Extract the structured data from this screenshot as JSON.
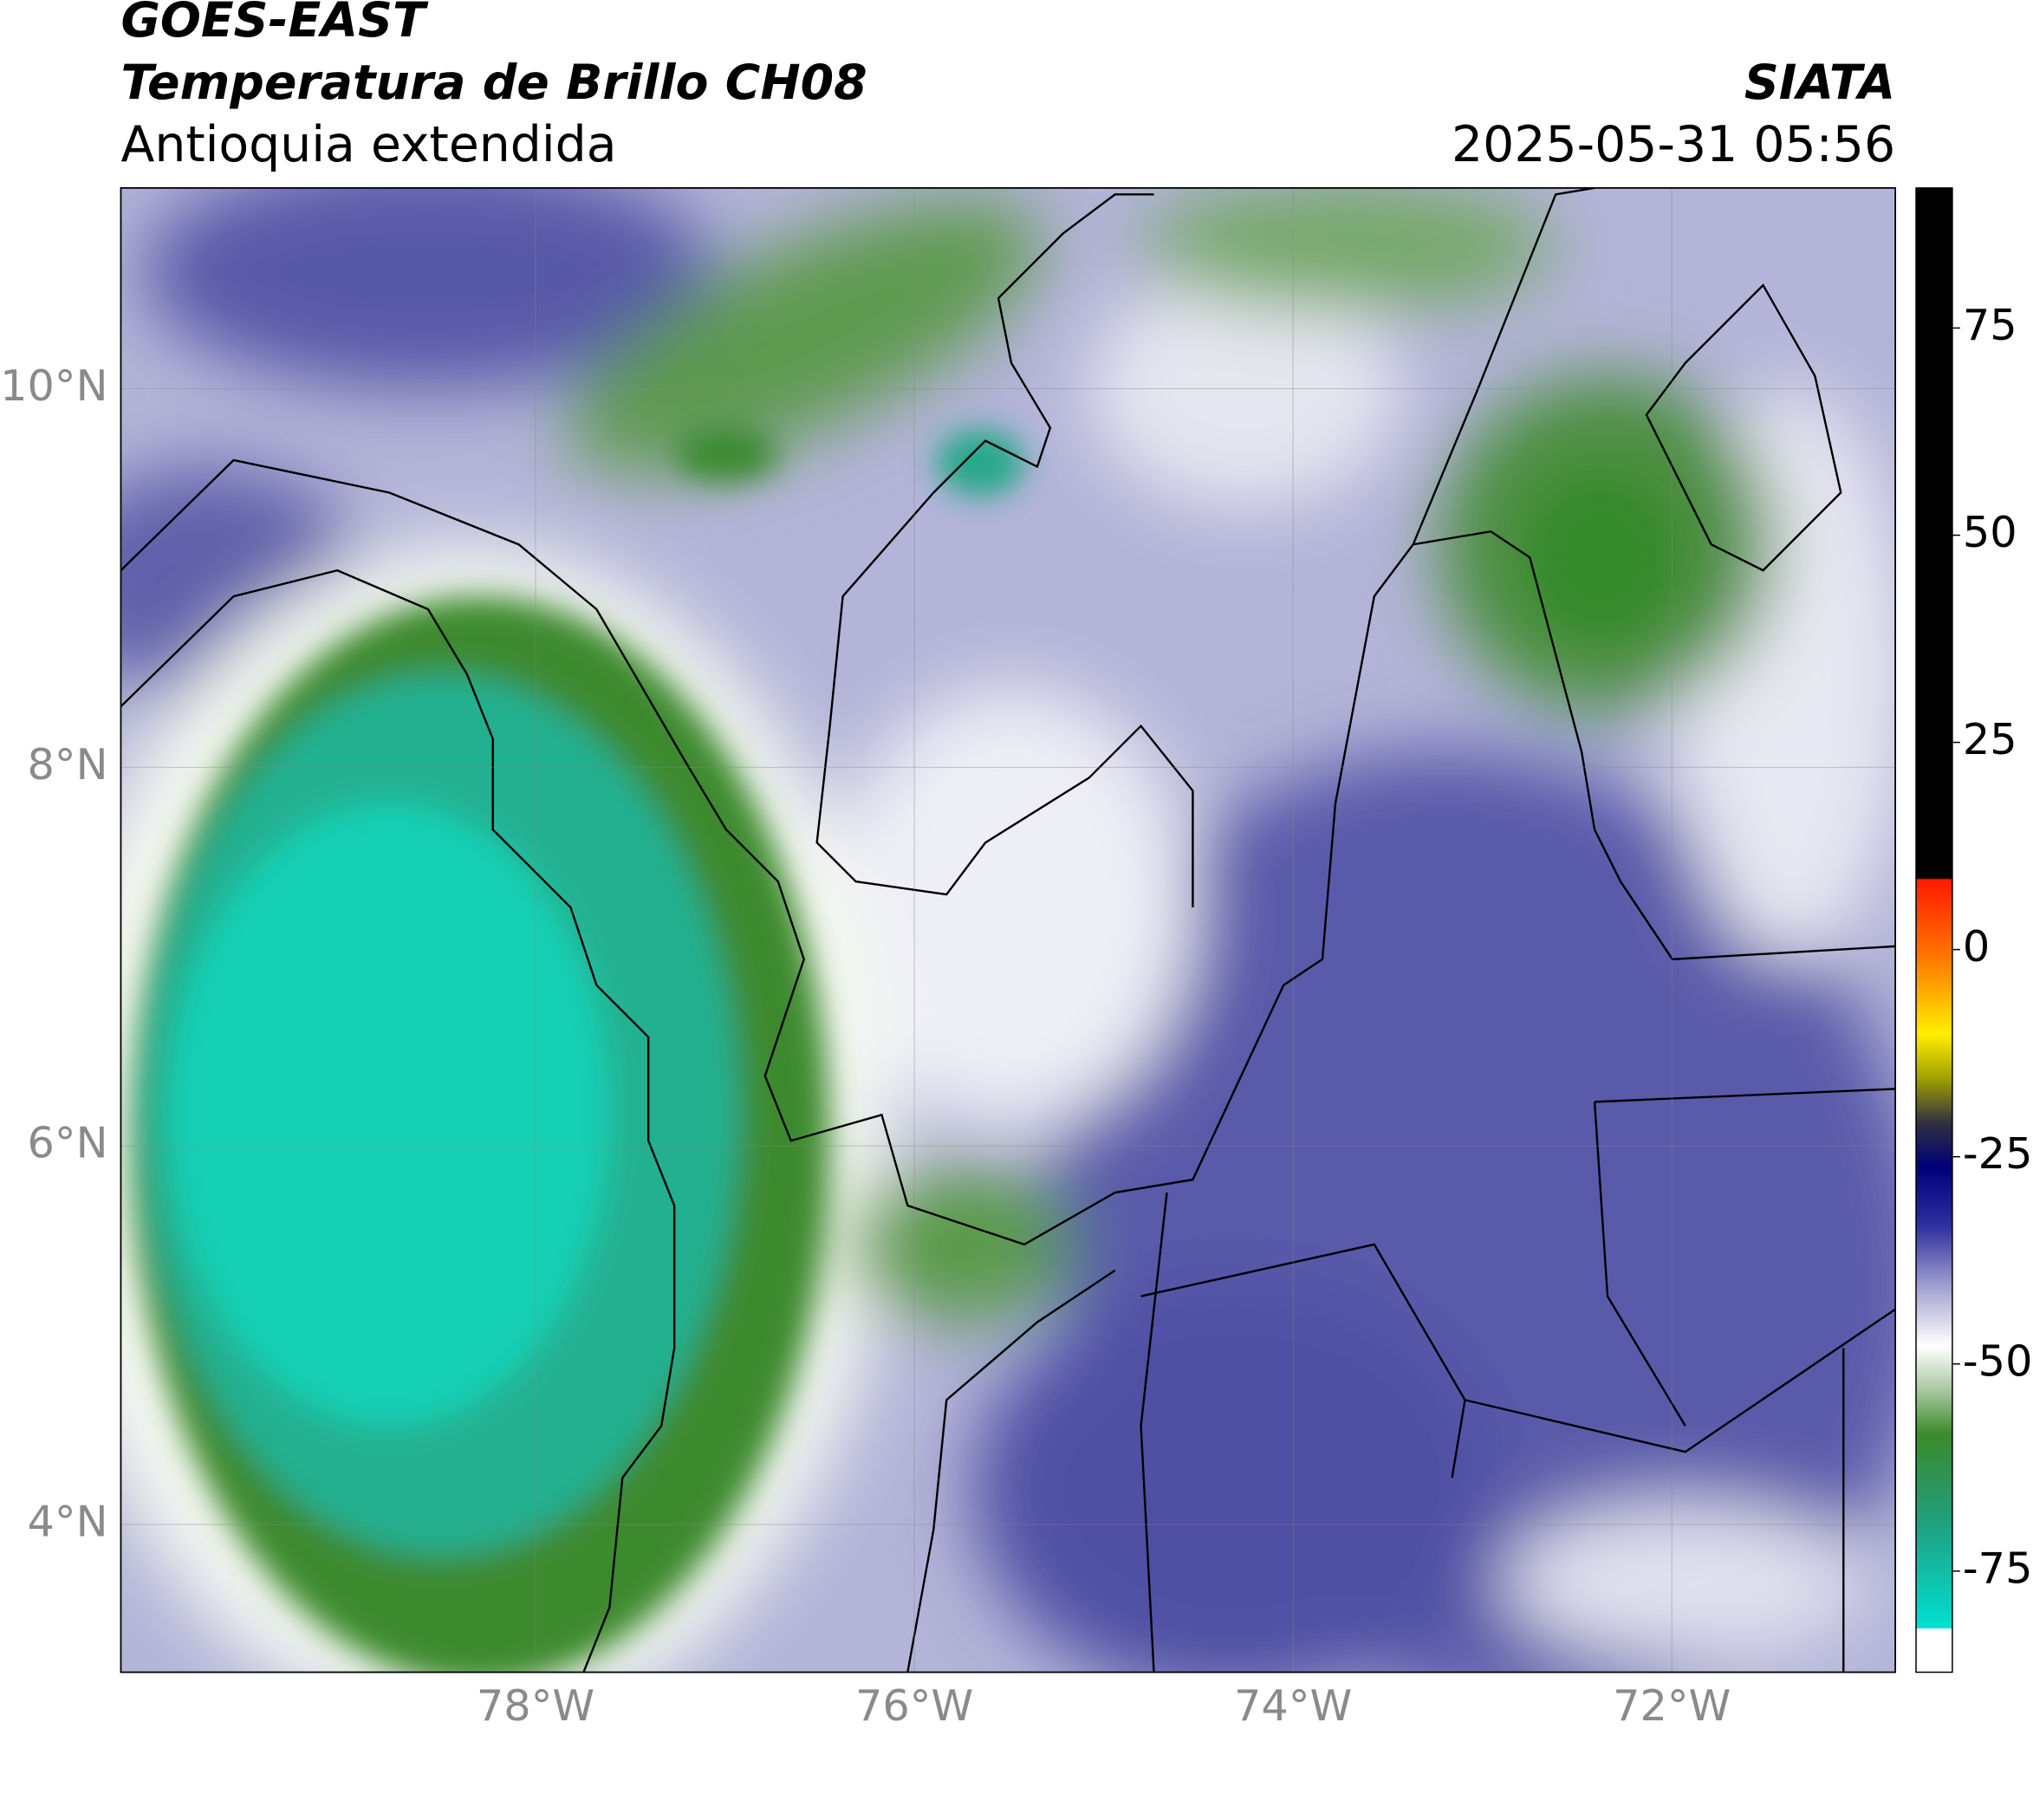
{
  "header": {
    "satellite": "GOES-EAST",
    "product": "Temperatura de Brillo CH08",
    "region": "Antioquia extendida",
    "source": "SIATA",
    "datetime": "2025-05-31 05:56"
  },
  "map": {
    "lonlim": [
      -80.19,
      -70.82
    ],
    "latlim": [
      3.22,
      11.06
    ],
    "lon_ticks": [
      {
        "value": -78,
        "label": "78°W"
      },
      {
        "value": -76,
        "label": "76°W"
      },
      {
        "value": -74,
        "label": "74°W"
      },
      {
        "value": -72,
        "label": "72°W"
      }
    ],
    "lat_ticks": [
      {
        "value": 10,
        "label": "10°N"
      },
      {
        "value": 8,
        "label": "8°N"
      },
      {
        "value": 6,
        "label": "6°N"
      },
      {
        "value": 4,
        "label": "4°N"
      }
    ]
  },
  "colorbar": {
    "lim": [
      -87.2,
      91.9
    ],
    "ticks": [
      75,
      50,
      25,
      0,
      -25,
      -50,
      -75
    ]
  }
}
